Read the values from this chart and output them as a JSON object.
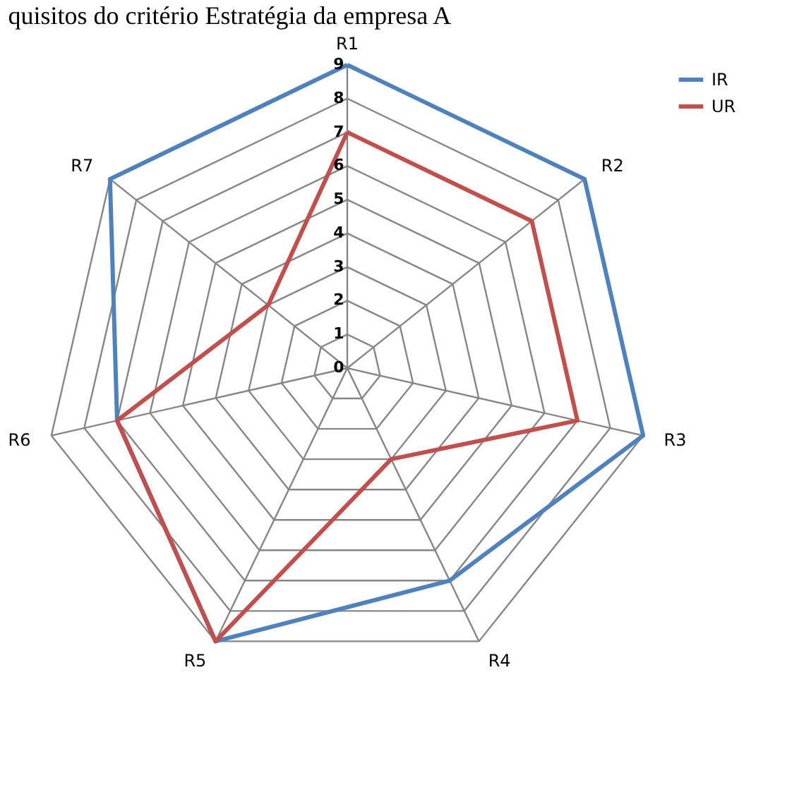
{
  "chart_data": {
    "type": "radar",
    "title": "quisitos do critério Estratégia da empresa A",
    "categories": [
      "R1",
      "R2",
      "R3",
      "R4",
      "R5",
      "R6",
      "R7"
    ],
    "series": [
      {
        "name": "IR",
        "color": "#4f81bd",
        "values": [
          9,
          9,
          9,
          7,
          9,
          7,
          9
        ]
      },
      {
        "name": "UR",
        "color": "#c0504d",
        "values": [
          7,
          7,
          7,
          3,
          9,
          7,
          3
        ]
      }
    ],
    "ylim": [
      0,
      9
    ],
    "yticks": [
      0,
      1,
      2,
      3,
      4,
      5,
      6,
      7,
      8,
      9
    ],
    "grid": true,
    "legend": "right",
    "marker": "none"
  }
}
